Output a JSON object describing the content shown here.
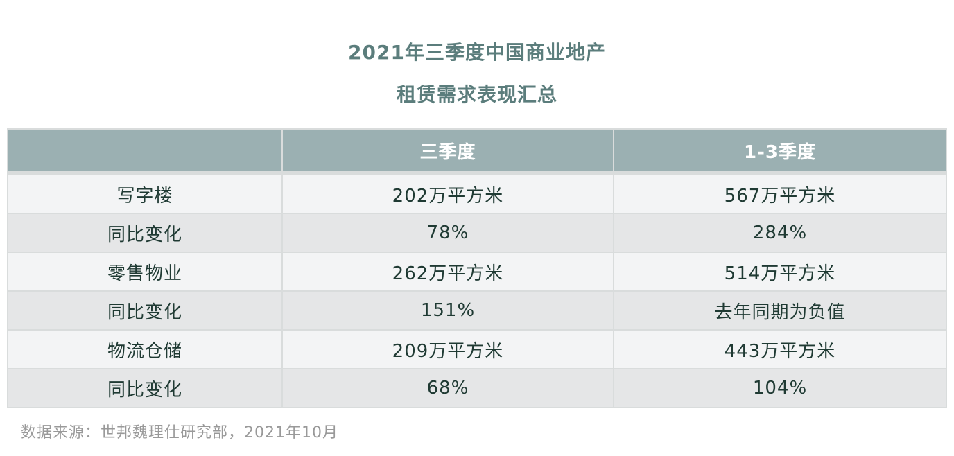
{
  "title": {
    "line1": "2021年三季度中国商业地产",
    "line2": "租赁需求表现汇总"
  },
  "table": {
    "headers": [
      "",
      "三季度",
      "1-3季度"
    ],
    "rows": [
      [
        "写字楼",
        "202万平方米",
        "567万平方米"
      ],
      [
        "同比变化",
        "78%",
        "284%"
      ],
      [
        "零售物业",
        "262万平方米",
        "514万平方米"
      ],
      [
        "同比变化",
        "151%",
        "去年同期为负值"
      ],
      [
        "物流仓储",
        "209万平方米",
        "443万平方米"
      ],
      [
        "同比变化",
        "68%",
        "104%"
      ]
    ]
  },
  "source": "数据来源：世邦魏理仕研究部，2021年10月",
  "colors": {
    "title": "#5b7d7c",
    "header_bg": "#9bb0b2",
    "row_light": "#f3f4f5",
    "row_dark": "#e5e6e7",
    "source_text": "#999999"
  }
}
